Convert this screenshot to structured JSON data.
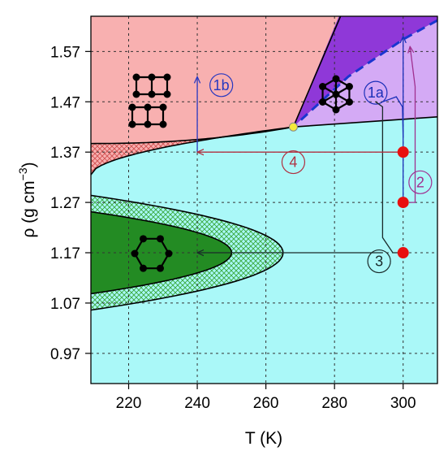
{
  "chart_data": {
    "type": "phase-diagram",
    "xlabel": "T (K)",
    "ylabel_main": "ρ (g cm",
    "ylabel_sup": "−3",
    "ylabel_end": ")",
    "xlim": [
      209,
      310
    ],
    "ylim": [
      0.91,
      1.64
    ],
    "xticks": [
      220,
      240,
      260,
      280,
      300
    ],
    "yticks": [
      0.97,
      1.07,
      1.17,
      1.27,
      1.37,
      1.47,
      1.57
    ],
    "ytick_labels": [
      "0.97",
      "1.07",
      "1.17",
      "1.27",
      "1.37",
      "1.47",
      "1.57"
    ],
    "grid": true,
    "colors": {
      "liquid": "#aaf8f8",
      "square_ice": "#f8b0b0",
      "triangular_ice": "#8f38d8",
      "triangular_coexistence": "#d4aaf5",
      "hexagonal_ice": "#238b23",
      "hex_coexistence_hatch": "#3aa83a",
      "square_coexistence_hatch": "#d05050",
      "dashed_boundary": "#1a35d0",
      "path_1a": "#1a2fb8",
      "path_1b": "#2838c0",
      "path_2": "#a03090",
      "path_3": "#1a2a2a",
      "path_4": "#b03040",
      "state_points": "#e81010",
      "triple_point": "#f3ea3a"
    },
    "triple_point": {
      "T": 268,
      "rho": 1.42
    },
    "state_points": [
      {
        "T": 300,
        "rho": 1.37
      },
      {
        "T": 300,
        "rho": 1.27
      },
      {
        "T": 300,
        "rho": 1.17
      }
    ],
    "paths": [
      {
        "label": "1a",
        "from": {
          "T": 300,
          "rho": 1.27
        },
        "to": {
          "T": 300,
          "rho": 1.6
        }
      },
      {
        "label": "1b",
        "from": {
          "T": 240,
          "rho": 1.37
        },
        "to": {
          "T": 240,
          "rho": 1.52
        }
      },
      {
        "label": "2",
        "from": {
          "T": 302,
          "rho": 1.27
        },
        "to": {
          "T": 302,
          "rho": 1.58
        }
      },
      {
        "label": "3",
        "from": {
          "T": 300,
          "rho": 1.17
        },
        "to": {
          "T": 240,
          "rho": 1.17
        }
      },
      {
        "label": "4",
        "from": {
          "T": 300,
          "rho": 1.37
        },
        "to": {
          "T": 240,
          "rho": 1.37
        }
      }
    ],
    "path_labels": [
      "1a",
      "1b",
      "2",
      "3",
      "4"
    ],
    "lattice_icons": [
      "square-bilayer-icon",
      "triangular-lattice-icon",
      "hexagonal-ring-icon"
    ]
  }
}
